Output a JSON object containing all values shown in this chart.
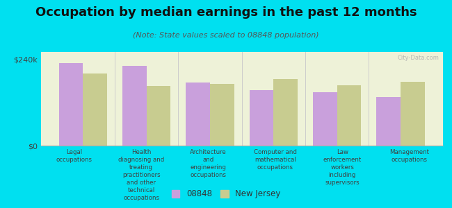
{
  "title": "Occupation by median earnings in the past 12 months",
  "subtitle": "(Note: State values scaled to 08848 population)",
  "categories": [
    "Legal\noccupations",
    "Health\ndiagnosing and\ntreating\npractitioners\nand other\ntechnical\noccupations",
    "Architecture\nand\nengineering\noccupations",
    "Computer and\nmathematical\noccupations",
    "Law\nenforcement\nworkers\nincluding\nsupervisors",
    "Management\noccupations"
  ],
  "values_08848": [
    230000,
    222000,
    175000,
    155000,
    148000,
    135000
  ],
  "values_nj": [
    200000,
    165000,
    172000,
    185000,
    168000,
    178000
  ],
  "color_08848": "#c9a0dc",
  "color_nj": "#c8cc90",
  "ylim": [
    0,
    260000
  ],
  "ytick_labels": [
    "$0",
    "$240k"
  ],
  "ytick_vals": [
    0,
    240000
  ],
  "legend_08848": "08848",
  "legend_nj": "New Jersey",
  "bg_chart": "#eef2d8",
  "bg_figure": "#00e0f0",
  "watermark": "City-Data.com",
  "title_fontsize": 13,
  "subtitle_fontsize": 8,
  "bar_width": 0.38
}
